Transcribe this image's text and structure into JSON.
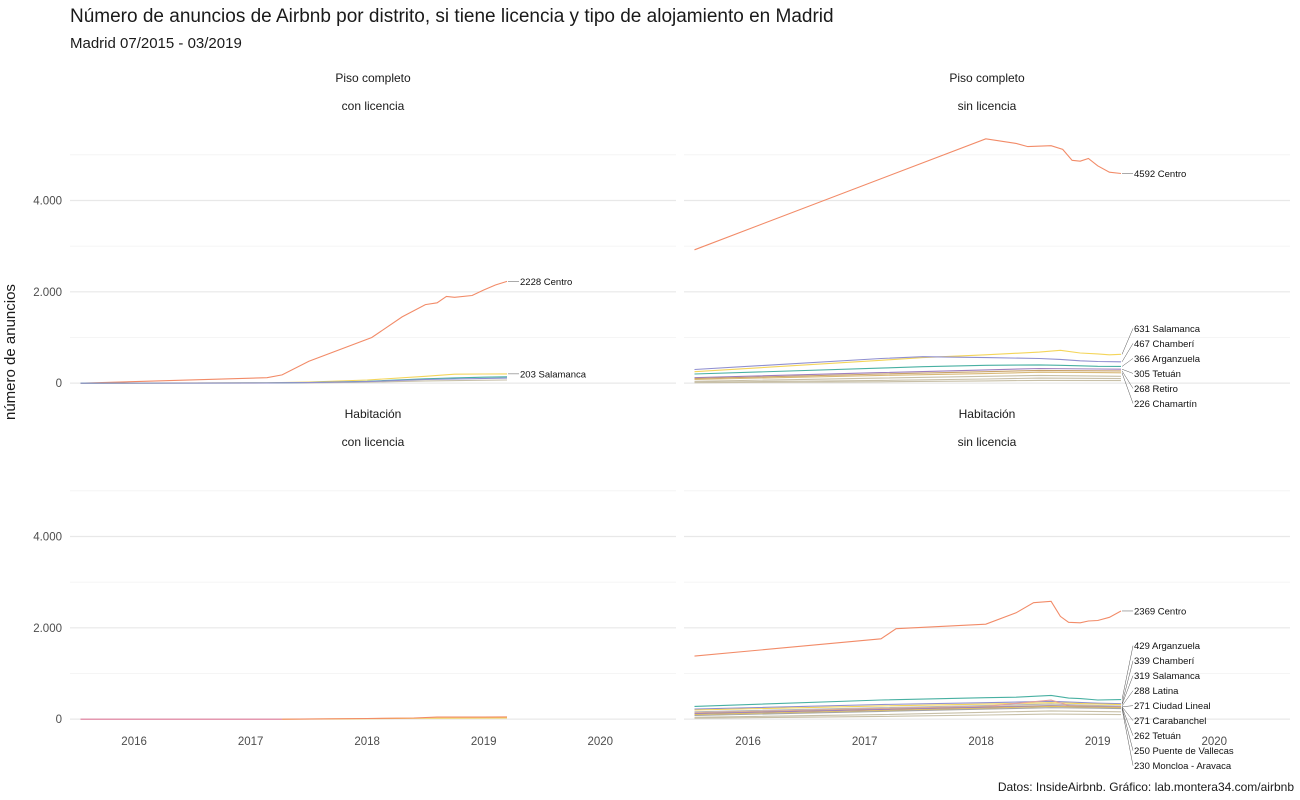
{
  "title": "Número de anuncios de Airbnb por distrito, si tiene licencia y tipo de alojamiento en Madrid",
  "subtitle": "Madrid 07/2015 - 03/2019",
  "caption": "Datos: InsideAirbnb. Gráfico: lab.montera34.com/airbnb",
  "colors": {
    "Centro": "#f28b68",
    "Salamanca": "#f4d55a",
    "Chamberí": "#8f8fd0",
    "Arganzuela": "#48b0a2",
    "Tetuán": "#9e7fbf",
    "Retiro": "#c9a36a",
    "Chamartín": "#d9b978",
    "Latina": "#b9b9b9",
    "Ciudad Lineal": "#e3a0a0",
    "Carabanchel": "#cdb38b",
    "Puente de Vallecas": "#e0c060",
    "Moncloa - Aravaca": "#a6a6a6",
    "others": "#c8c0a8",
    "pink": "#e07a9a"
  },
  "chart_data": {
    "type": "line",
    "title": "Número de anuncios de Airbnb por distrito, si tiene licencia y tipo de alojamiento en Madrid",
    "subtitle": "Madrid 07/2015 - 03/2019",
    "xlabel": "",
    "ylabel": "número de anuncios",
    "x_ticks": [
      "2016",
      "2017",
      "2018",
      "2019",
      "2020"
    ],
    "y_ticks": [
      "0",
      "2.000",
      "4.000"
    ],
    "xlim": [
      2015.45,
      2020.65
    ],
    "ylim": [
      -150,
      5500
    ],
    "grid": true,
    "legend": "none",
    "panels": [
      {
        "strip": [
          "Piso completo",
          "con licencia"
        ],
        "series": [
          {
            "name": "Centro",
            "label": "2228 Centro",
            "x": [
              2015.54,
              2017.14,
              2017.27,
              2017.5,
              2018.04,
              2018.3,
              2018.5,
              2018.6,
              2018.68,
              2018.75,
              2018.9,
              2019.0,
              2019.1,
              2019.2
            ],
            "y": [
              0,
              120,
              180,
              480,
              1000,
              1450,
              1720,
              1760,
              1900,
              1880,
              1920,
              2040,
              2150,
              2228
            ]
          },
          {
            "name": "Salamanca",
            "label": "203 Salamanca",
            "x": [
              2015.54,
              2017.14,
              2017.5,
              2018.0,
              2018.5,
              2018.75,
              2019.0,
              2019.2
            ],
            "y": [
              0,
              8,
              25,
              70,
              150,
              195,
              200,
              203
            ]
          },
          {
            "name": "Arganzuela",
            "x": [
              2015.54,
              2017.14,
              2017.5,
              2018.0,
              2018.5,
              2018.75,
              2019.0,
              2019.2
            ],
            "y": [
              0,
              5,
              15,
              40,
              95,
              115,
              130,
              140
            ]
          },
          {
            "name": "Chamberí",
            "x": [
              2015.54,
              2017.14,
              2017.5,
              2018.0,
              2018.5,
              2019.2
            ],
            "y": [
              0,
              5,
              12,
              35,
              80,
              110
            ]
          },
          {
            "name": "others",
            "x": [
              2015.54,
              2017.14,
              2017.5,
              2018.0,
              2018.5,
              2019.2
            ],
            "y": [
              0,
              3,
              8,
              20,
              50,
              70
            ]
          }
        ]
      },
      {
        "strip": [
          "Piso completo",
          "sin licencia"
        ],
        "series": [
          {
            "name": "Centro",
            "label": "4592 Centro",
            "x": [
              2015.54,
              2018.04,
              2018.3,
              2018.4,
              2018.6,
              2018.7,
              2018.78,
              2018.85,
              2018.92,
              2019.0,
              2019.1,
              2019.2
            ],
            "y": [
              2920,
              5350,
              5250,
              5180,
              5200,
              5120,
              4880,
              4860,
              4920,
              4760,
              4620,
              4592
            ]
          },
          {
            "name": "Salamanca",
            "label": "631 Salamanca",
            "x": [
              2015.54,
              2017.14,
              2017.5,
              2018.04,
              2018.5,
              2018.68,
              2018.85,
              2019.0,
              2019.1,
              2019.2
            ],
            "y": [
              250,
              500,
              560,
              620,
              680,
              720,
              660,
              640,
              620,
              631
            ]
          },
          {
            "name": "Chamberí",
            "label": "467 Chamberí",
            "x": [
              2015.54,
              2017.14,
              2017.5,
              2018.04,
              2018.5,
              2018.68,
              2018.85,
              2019.0,
              2019.2
            ],
            "y": [
              300,
              540,
              580,
              560,
              540,
              520,
              490,
              475,
              467
            ]
          },
          {
            "name": "Arganzuela",
            "label": "366 Arganzuela",
            "x": [
              2015.54,
              2017.14,
              2017.5,
              2018.04,
              2018.5,
              2018.68,
              2018.85,
              2019.0,
              2019.2
            ],
            "y": [
              200,
              330,
              360,
              390,
              400,
              390,
              380,
              370,
              366
            ]
          },
          {
            "name": "Tetuán",
            "label": "305 Tetuán",
            "x": [
              2015.54,
              2017.14,
              2018.04,
              2018.5,
              2019.0,
              2019.2
            ],
            "y": [
              120,
              230,
              290,
              320,
              310,
              305
            ]
          },
          {
            "name": "Retiro",
            "label": "268 Retiro",
            "x": [
              2015.54,
              2017.14,
              2018.04,
              2018.5,
              2019.0,
              2019.2
            ],
            "y": [
              100,
              200,
              250,
              280,
              270,
              268
            ]
          },
          {
            "name": "Chamartín",
            "label": "226 Chamartín",
            "x": [
              2015.54,
              2017.14,
              2018.04,
              2018.5,
              2019.0,
              2019.2
            ],
            "y": [
              80,
              170,
              210,
              240,
              230,
              226
            ]
          },
          {
            "name": "others",
            "x": [
              2015.54,
              2017.14,
              2018.04,
              2018.5,
              2019.2
            ],
            "y": [
              40,
              110,
              150,
              170,
              150
            ]
          },
          {
            "name": "others",
            "x": [
              2015.54,
              2017.14,
              2018.04,
              2018.5,
              2019.2
            ],
            "y": [
              20,
              60,
              90,
              110,
              100
            ]
          },
          {
            "name": "others",
            "x": [
              2015.54,
              2017.14,
              2018.04,
              2018.5,
              2019.2
            ],
            "y": [
              10,
              30,
              50,
              60,
              55
            ]
          }
        ]
      },
      {
        "strip": [
          "Habitación",
          "con licencia"
        ],
        "series": [
          {
            "name": "pink",
            "x": [
              2015.54,
              2017.27
            ],
            "y": [
              0,
              0
            ]
          },
          {
            "name": "Salamanca",
            "x": [
              2017.27,
              2018.0,
              2018.5,
              2019.2
            ],
            "y": [
              0,
              10,
              20,
              25
            ]
          },
          {
            "name": "Centro",
            "x": [
              2017.27,
              2018.0,
              2018.4,
              2018.6,
              2019.0,
              2019.2
            ],
            "y": [
              0,
              15,
              25,
              45,
              45,
              50
            ]
          }
        ]
      },
      {
        "strip": [
          "Habitación",
          "sin licencia"
        ],
        "series": [
          {
            "name": "Centro",
            "label": "2369 Centro",
            "x": [
              2015.54,
              2017.14,
              2017.27,
              2018.04,
              2018.3,
              2018.45,
              2018.6,
              2018.68,
              2018.75,
              2018.85,
              2018.92,
              2019.0,
              2019.1,
              2019.2
            ],
            "y": [
              1380,
              1760,
              1980,
              2080,
              2330,
              2550,
              2580,
              2250,
              2120,
              2110,
              2150,
              2160,
              2230,
              2369
            ]
          },
          {
            "name": "Arganzuela",
            "label": "429 Arganzuela",
            "x": [
              2015.54,
              2017.14,
              2018.04,
              2018.3,
              2018.6,
              2018.75,
              2018.85,
              2019.0,
              2019.2
            ],
            "y": [
              280,
              420,
              470,
              480,
              520,
              460,
              450,
              420,
              429
            ]
          },
          {
            "name": "Chamberí",
            "label": "339 Chamberí",
            "x": [
              2015.54,
              2017.14,
              2018.04,
              2018.6,
              2019.0,
              2019.2
            ],
            "y": [
              220,
              320,
              360,
              390,
              350,
              339
            ]
          },
          {
            "name": "Salamanca",
            "label": "319 Salamanca",
            "x": [
              2015.54,
              2017.14,
              2018.04,
              2018.6,
              2019.0,
              2019.2
            ],
            "y": [
              200,
              290,
              330,
              360,
              330,
              319
            ]
          },
          {
            "name": "Latina",
            "label": "288 Latina",
            "x": [
              2015.54,
              2017.14,
              2018.04,
              2018.6,
              2019.0,
              2019.2
            ],
            "y": [
              160,
              250,
              300,
              330,
              300,
              288
            ]
          },
          {
            "name": "Ciudad Lineal",
            "label": "271 Ciudad Lineal",
            "x": [
              2015.54,
              2017.14,
              2018.04,
              2018.6,
              2018.75,
              2019.0,
              2019.2
            ],
            "y": [
              140,
              230,
              280,
              420,
              300,
              280,
              271
            ]
          },
          {
            "name": "Carabanchel",
            "label": "271 Carabanchel",
            "x": [
              2015.54,
              2017.14,
              2018.04,
              2018.6,
              2019.0,
              2019.2
            ],
            "y": [
              130,
              220,
              270,
              300,
              280,
              271
            ]
          },
          {
            "name": "Tetuán",
            "label": "262 Tetuán",
            "x": [
              2015.54,
              2017.14,
              2018.04,
              2018.6,
              2019.0,
              2019.2
            ],
            "y": [
              120,
              210,
              260,
              290,
              270,
              262
            ]
          },
          {
            "name": "Puente de Vallecas",
            "label": "250 Puente de Vallecas",
            "x": [
              2015.54,
              2017.14,
              2018.04,
              2018.6,
              2019.0,
              2019.2
            ],
            "y": [
              100,
              190,
              240,
              280,
              260,
              250
            ]
          },
          {
            "name": "Moncloa - Aravaca",
            "label": "230 Moncloa - Aravaca",
            "x": [
              2015.54,
              2017.14,
              2018.04,
              2018.6,
              2019.0,
              2019.2
            ],
            "y": [
              80,
              170,
              220,
              250,
              240,
              230
            ]
          },
          {
            "name": "others",
            "x": [
              2015.54,
              2017.14,
              2018.04,
              2018.6,
              2019.2
            ],
            "y": [
              40,
              100,
              150,
              180,
              160
            ]
          },
          {
            "name": "others",
            "x": [
              2015.54,
              2017.14,
              2018.04,
              2018.6,
              2019.2
            ],
            "y": [
              20,
              60,
              90,
              110,
              100
            ]
          }
        ]
      }
    ]
  }
}
